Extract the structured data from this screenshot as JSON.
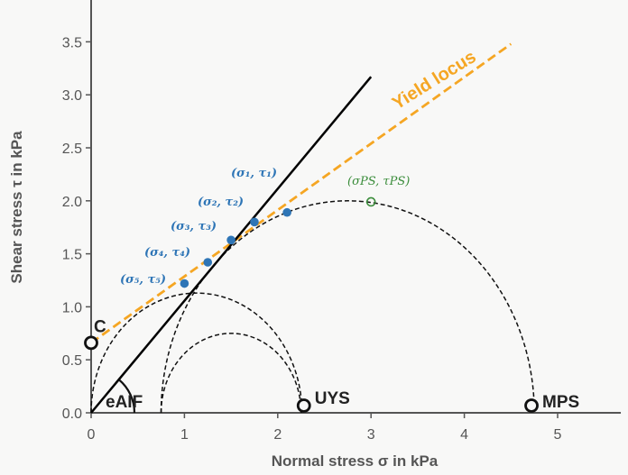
{
  "chart_data": {
    "type": "scatter",
    "xlabel": "Normal stress σ in kPa",
    "ylabel": "Shear stress τ in kPa",
    "xlim": [
      0,
      5.6
    ],
    "ylim": [
      0,
      3.65
    ],
    "x_ticks": [
      "0",
      "1",
      "2",
      "3",
      "4",
      "5"
    ],
    "y_ticks": [
      "0.0",
      "0.5",
      "1.0",
      "1.5",
      "2.0",
      "2.5",
      "3.0",
      "3.5"
    ],
    "grid": false,
    "series": [
      {
        "points": [
          {
            "x": 1.75,
            "y": 1.8,
            "label": "(σ₁, τ₁)"
          },
          {
            "x": 1.5,
            "y": 1.63,
            "label": "(σ₂, τ₂)"
          },
          {
            "x": 1.25,
            "y": 1.42,
            "label": "(σ₃, τ₃)"
          },
          {
            "x": 2.1,
            "y": 1.89,
            "label": ""
          },
          {
            "x": 1.0,
            "y": 1.22,
            "label": "(σ₅, τ₅)"
          }
        ],
        "extra_labels": [
          "(σ₄, τ₄)"
        ],
        "color": "#2e75b6"
      }
    ],
    "preshear_point": {
      "x": 3.0,
      "y": 1.99,
      "label": "(σPS, τPS)",
      "color": "#3a8c3a"
    },
    "yield_locus": {
      "name": "Yield locus",
      "from": [
        0,
        0.66
      ],
      "to": [
        4.5,
        3.48
      ],
      "color": "#f5a623"
    },
    "eaif_line": {
      "from": [
        0,
        0
      ],
      "to": [
        3.0,
        3.17
      ],
      "color": "#000000"
    },
    "mohr_circles": [
      {
        "center": 1.13,
        "radius": 1.13
      },
      {
        "center": 1.5,
        "radius": 0.75
      },
      {
        "center": 2.75,
        "radius": 2.0
      }
    ],
    "markers": [
      {
        "x": 0.0,
        "y": 0.66,
        "label": "C"
      },
      {
        "x": 2.28,
        "y": 0.0,
        "label": "UYS"
      },
      {
        "x": 4.72,
        "y": 0.0,
        "label": "MPS"
      }
    ],
    "angle_label": "eAIF"
  }
}
